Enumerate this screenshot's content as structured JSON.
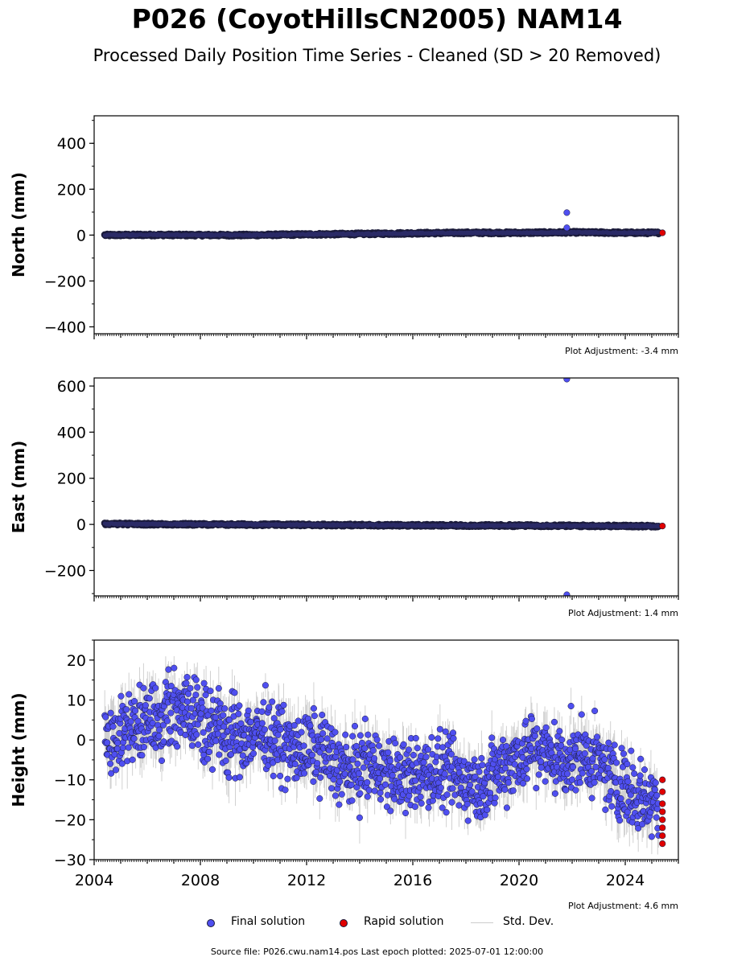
{
  "title": "P026 (CoyotHillsCN2005) NAM14",
  "subtitle": "Processed Daily Position Time Series - Cleaned (SD > 20 Removed)",
  "colors": {
    "final": "#4f4ff0",
    "final_edge": "#1a1a3a",
    "rapid": "#e00000",
    "std": "#999999"
  },
  "legend": {
    "final": "Final solution",
    "rapid": "Rapid solution",
    "std": "Std. Dev."
  },
  "source": "Source file: P026.cwu.nam14.pos  Last epoch plotted: 2025-07-01 12:00:00",
  "chart_data": [
    {
      "type": "scatter",
      "name": "north",
      "ylabel": "North (mm)",
      "ylim": [
        -430,
        520
      ],
      "xlim": [
        2004.0,
        2026.0
      ],
      "yticks": [
        -400,
        -200,
        0,
        200,
        400
      ],
      "xticks": [
        2004,
        2008,
        2012,
        2016,
        2020,
        2024
      ],
      "show_xticklabels": false,
      "adjustment": "Plot Adjustment: -3.4 mm",
      "series_points": [
        [
          2004.5,
          0
        ],
        [
          2006,
          1
        ],
        [
          2008,
          0
        ],
        [
          2010,
          0
        ],
        [
          2012,
          3
        ],
        [
          2014,
          5
        ],
        [
          2016,
          8
        ],
        [
          2018,
          10
        ],
        [
          2020,
          10
        ],
        [
          2022,
          12
        ],
        [
          2024,
          10
        ],
        [
          2025.3,
          10
        ]
      ],
      "outliers": [
        [
          2021.8,
          98
        ],
        [
          2021.8,
          32
        ]
      ],
      "rapid_points": [
        [
          2025.4,
          10
        ]
      ]
    },
    {
      "type": "scatter",
      "name": "east",
      "ylabel": "East (mm)",
      "ylim": [
        -310,
        635
      ],
      "xlim": [
        2004.0,
        2026.0
      ],
      "yticks": [
        -200,
        0,
        200,
        400,
        600
      ],
      "xticks": [
        2004,
        2008,
        2012,
        2016,
        2020,
        2024
      ],
      "show_xticklabels": false,
      "adjustment": "Plot Adjustment: 1.4 mm",
      "series_points": [
        [
          2004.5,
          2
        ],
        [
          2006,
          1
        ],
        [
          2008,
          0
        ],
        [
          2010,
          -1
        ],
        [
          2012,
          -2
        ],
        [
          2014,
          -3
        ],
        [
          2016,
          -4
        ],
        [
          2018,
          -5
        ],
        [
          2020,
          -5
        ],
        [
          2022,
          -6
        ],
        [
          2024,
          -7
        ],
        [
          2025.3,
          -7
        ]
      ],
      "outliers": [
        [
          2021.8,
          630
        ],
        [
          2021.8,
          -305
        ]
      ],
      "rapid_points": [
        [
          2025.4,
          -7
        ]
      ]
    },
    {
      "type": "scatter",
      "name": "height",
      "ylabel": "Height (mm)",
      "ylim": [
        -30,
        25
      ],
      "xlim": [
        2004.0,
        2026.0
      ],
      "yticks": [
        -30,
        -20,
        -10,
        0,
        10,
        20
      ],
      "xticks": [
        2004,
        2008,
        2012,
        2016,
        2020,
        2024
      ],
      "show_xticklabels": true,
      "adjustment": "Plot Adjustment: 4.6 mm",
      "trend": [
        [
          2004.5,
          -1
        ],
        [
          2005.5,
          4
        ],
        [
          2006.5,
          6
        ],
        [
          2007.5,
          8
        ],
        [
          2008.5,
          3
        ],
        [
          2009.5,
          1
        ],
        [
          2010.5,
          2
        ],
        [
          2011.5,
          -3
        ],
        [
          2012.5,
          -2
        ],
        [
          2013.5,
          -8
        ],
        [
          2014.5,
          -6
        ],
        [
          2015.5,
          -10
        ],
        [
          2016.5,
          -8
        ],
        [
          2017.5,
          -9
        ],
        [
          2018.5,
          -12
        ],
        [
          2019.5,
          -6
        ],
        [
          2020.5,
          -2
        ],
        [
          2021.5,
          -5
        ],
        [
          2022.5,
          -4
        ],
        [
          2023.5,
          -9
        ],
        [
          2024.5,
          -14
        ],
        [
          2025.3,
          -16
        ]
      ],
      "rapid_points": [
        [
          2025.4,
          -10
        ],
        [
          2025.4,
          -13
        ],
        [
          2025.4,
          -16
        ],
        [
          2025.4,
          -18
        ],
        [
          2025.4,
          -20
        ],
        [
          2025.4,
          -22
        ],
        [
          2025.4,
          -24
        ],
        [
          2025.4,
          -26
        ]
      ]
    }
  ]
}
